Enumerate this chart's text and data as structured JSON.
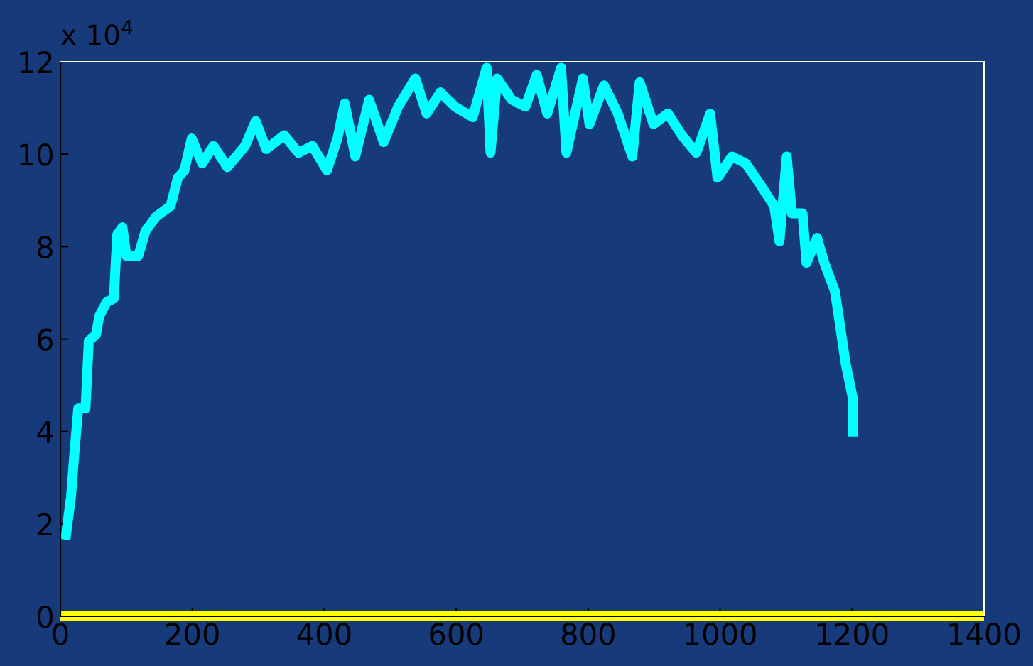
{
  "chart_data": {
    "type": "line",
    "annotations": [
      "x 10$^{4}$"
    ],
    "xlim": [
      0,
      1400
    ],
    "xticks": [
      0,
      200,
      400,
      600,
      800,
      1000,
      1200,
      1400
    ],
    "ylim": [
      0,
      12
    ],
    "yticks": [
      0,
      2,
      4,
      6,
      8,
      10,
      12
    ],
    "grid": false,
    "marker": "none",
    "line_style": "solid",
    "series": [
      {
        "color": "#00ffff",
        "x": [
          7.5,
          16,
          21,
          27,
          38,
          43,
          54,
          59,
          70,
          81,
          86,
          94,
          100,
          118,
          129,
          145,
          167,
          178,
          188,
          199,
          215,
          232,
          253,
          280,
          296,
          312,
          339,
          361,
          382,
          404,
          420,
          431,
          447,
          468,
          490,
          512,
          538,
          555,
          576,
          598,
          625,
          646,
          652,
          662,
          684,
          705,
          722,
          738,
          759,
          767,
          792,
          802,
          824,
          845,
          867,
          878,
          899,
          921,
          942,
          964,
          985,
          996,
          1018,
          1039,
          1061,
          1082,
          1090,
          1101,
          1109,
          1125,
          1131,
          1147,
          1158,
          1174,
          1179,
          1190,
          1201,
          1201
        ],
        "values": [
          1.66,
          2.58,
          3.5,
          4.5,
          4.5,
          5.96,
          6.1,
          6.5,
          6.8,
          6.88,
          8.26,
          8.42,
          7.8,
          7.8,
          8.34,
          8.65,
          8.88,
          9.49,
          9.65,
          10.34,
          9.8,
          10.18,
          9.72,
          10.18,
          10.72,
          10.11,
          10.41,
          10.03,
          10.18,
          9.65,
          10.34,
          11.1,
          9.95,
          11.18,
          10.26,
          11.03,
          11.64,
          10.88,
          11.34,
          11.03,
          10.8,
          11.87,
          10.03,
          11.64,
          11.18,
          11.03,
          11.72,
          10.88,
          11.87,
          10.03,
          11.64,
          10.65,
          11.49,
          10.88,
          9.95,
          11.56,
          10.65,
          10.88,
          10.41,
          10.03,
          10.88,
          9.49,
          9.95,
          9.8,
          9.34,
          8.88,
          8.11,
          9.95,
          8.72,
          8.72,
          7.65,
          8.19,
          7.65,
          7.04,
          6.57,
          5.5,
          4.73,
          3.89
        ]
      },
      {
        "color": "#ffff00",
        "x": [
          0,
          1400
        ],
        "values": [
          0,
          0
        ]
      }
    ]
  }
}
